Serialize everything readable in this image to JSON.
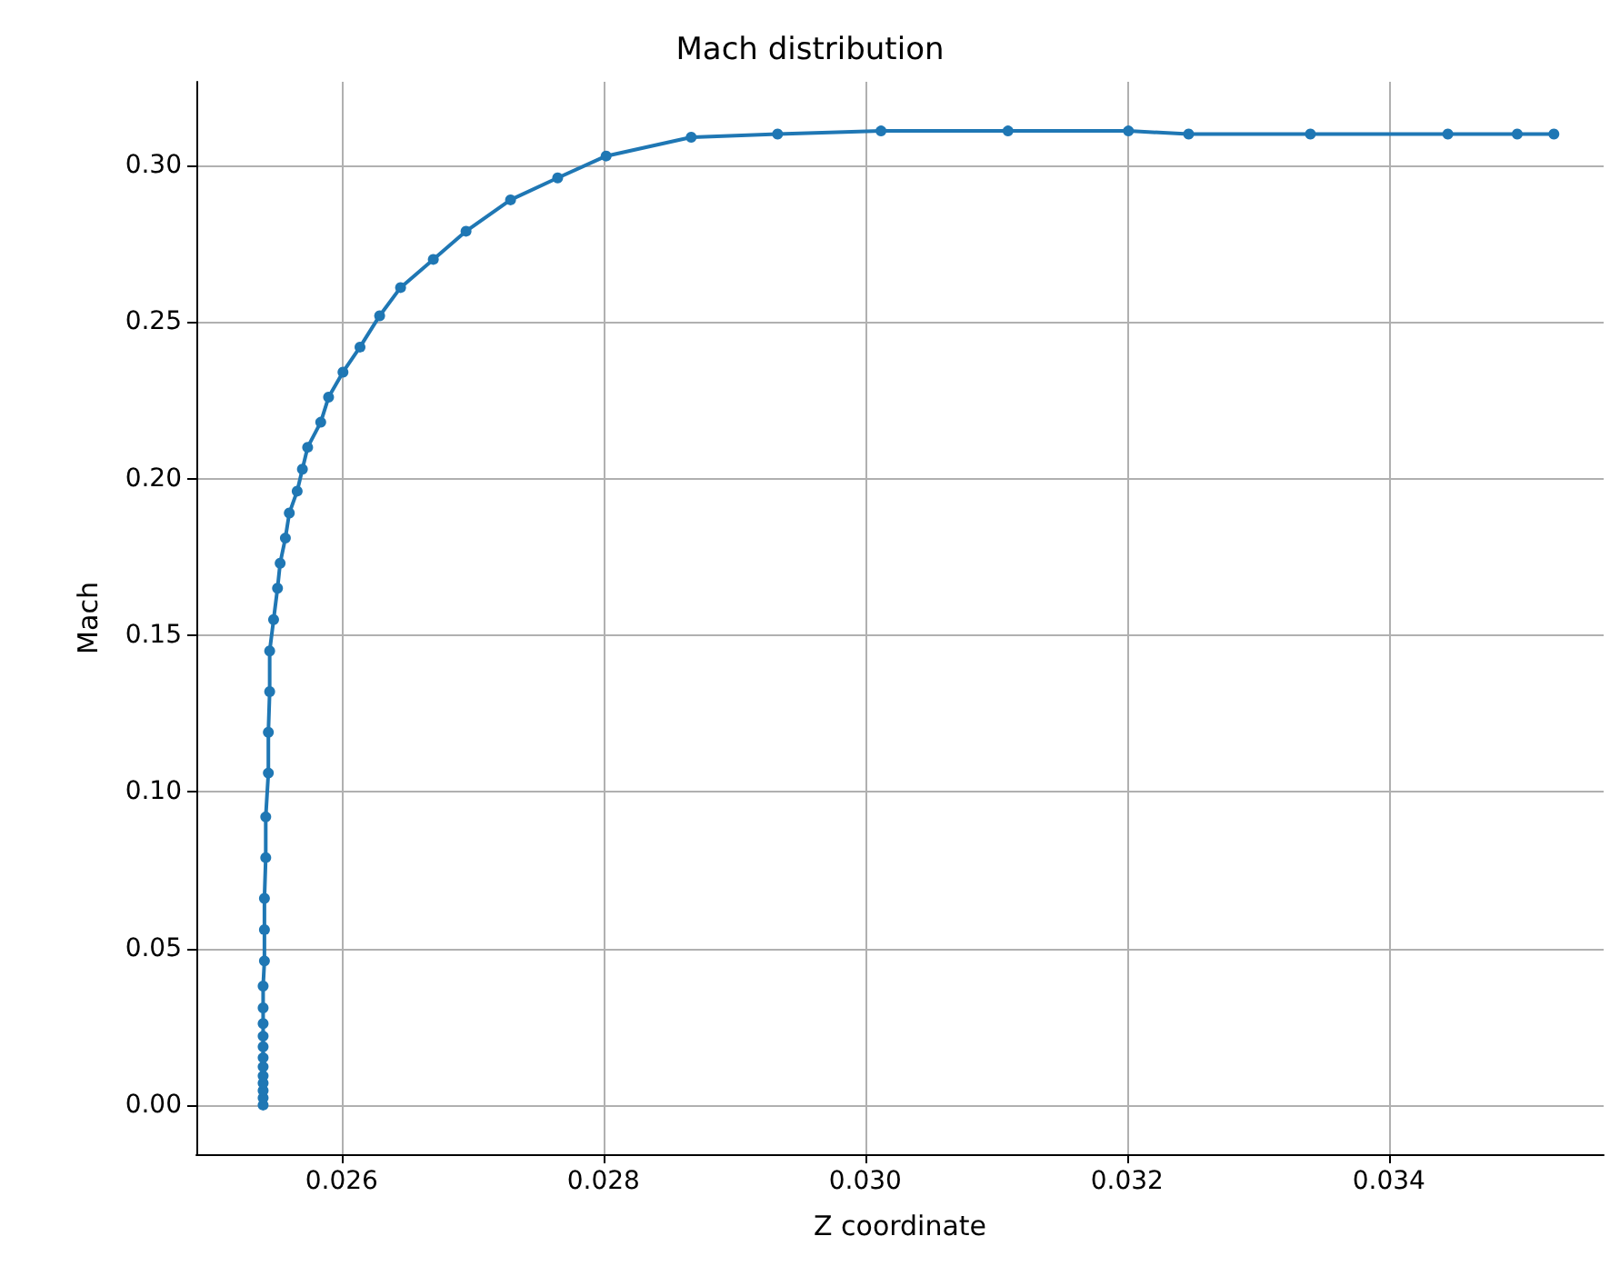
{
  "chart_data": {
    "type": "line",
    "title": "Mach distribution",
    "xlabel": "Z coordinate",
    "ylabel": "Mach",
    "x": [
      0.0254,
      0.0254,
      0.0254,
      0.0254,
      0.0254,
      0.0254,
      0.0254,
      0.0254,
      0.0254,
      0.0254,
      0.0254,
      0.0254,
      0.02541,
      0.02541,
      0.02541,
      0.02542,
      0.02542,
      0.02544,
      0.02544,
      0.02545,
      0.02545,
      0.02548,
      0.02551,
      0.02553,
      0.02557,
      0.0256,
      0.02566,
      0.0257,
      0.02574,
      0.02584,
      0.0259,
      0.02601,
      0.02614,
      0.02629,
      0.02645,
      0.0267,
      0.02695,
      0.02729,
      0.02765,
      0.02802,
      0.02867,
      0.02933,
      0.03012,
      0.03109,
      0.03201,
      0.03247,
      0.0334,
      0.03445,
      0.03498,
      0.03526
    ],
    "series": [
      {
        "color": "#1f77b4",
        "values": [
          0,
          0.0023,
          0.0046,
          0.007,
          0.0093,
          0.0122,
          0.0151,
          0.0186,
          0.022,
          0.026,
          0.031,
          0.038,
          0.046,
          0.056,
          0.066,
          0.079,
          0.092,
          0.106,
          0.119,
          0.132,
          0.145,
          0.155,
          0.165,
          0.173,
          0.181,
          0.189,
          0.196,
          0.203,
          0.21,
          0.218,
          0.226,
          0.234,
          0.242,
          0.252,
          0.261,
          0.27,
          0.279,
          0.289,
          0.296,
          0.303,
          0.309,
          0.31,
          0.311,
          0.311,
          0.311,
          0.31,
          0.31,
          0.31,
          0.31,
          0.31
        ]
      }
    ],
    "xlim": [
      0.02489,
      0.03564
    ],
    "ylim": [
      -0.0157,
      0.3267
    ],
    "xticks": [
      0.026,
      0.028,
      {
        "value": 0.03,
        "label": "0.030"
      },
      0.032,
      0.034
    ],
    "yticks": [
      {
        "value": 0,
        "label": "0.00"
      },
      {
        "value": 0.05,
        "label": "0.05"
      },
      {
        "value": 0.1,
        "label": "0.10"
      },
      {
        "value": 0.15,
        "label": "0.15"
      },
      {
        "value": 0.2,
        "label": "0.20"
      },
      {
        "value": 0.25,
        "label": "0.25"
      },
      {
        "value": 0.3,
        "label": "0.30"
      }
    ],
    "grid": true,
    "marker": "circle",
    "line_style": "solid"
  }
}
